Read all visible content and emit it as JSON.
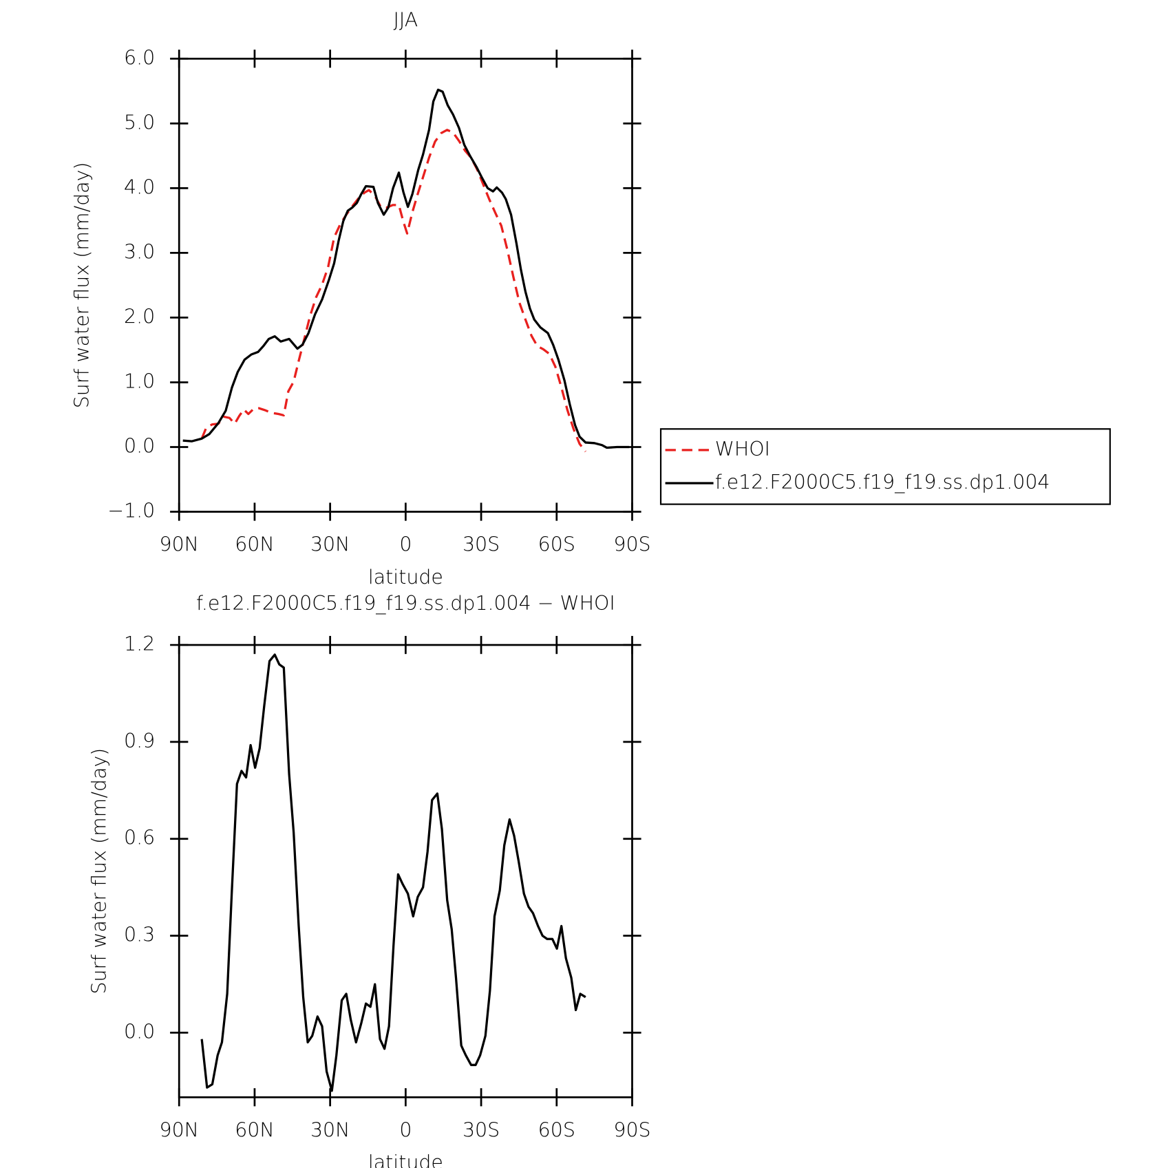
{
  "chart_data": [
    {
      "type": "line",
      "title": "JJA",
      "xlabel": "latitude",
      "ylabel": "Surf water flux (mm/day)",
      "xlim": [
        90,
        -90
      ],
      "xticks": [
        {
          "value": 90,
          "label": "90N"
        },
        {
          "value": 60,
          "label": "60N"
        },
        {
          "value": 30,
          "label": "30N"
        },
        0,
        {
          "value": -30,
          "label": "30S"
        },
        {
          "value": -60,
          "label": "60S"
        },
        {
          "value": -90,
          "label": "90S"
        }
      ],
      "ylim": [
        -1,
        6
      ],
      "yticks": [
        {
          "value": -1,
          "label": "−1.0"
        },
        {
          "value": 0,
          "label": "0.0"
        },
        {
          "value": 1,
          "label": "1.0"
        },
        {
          "value": 2,
          "label": "2.0"
        },
        {
          "value": 3,
          "label": "3.0"
        },
        {
          "value": 4,
          "label": "4.0"
        },
        {
          "value": 5,
          "label": "5.0"
        },
        {
          "value": 6,
          "label": "6.0"
        }
      ],
      "legend": "right",
      "series": [
        {
          "name": "WHOI",
          "color": "#e8201e",
          "dash": true,
          "x": [
            81,
            79.2,
            76.8,
            74.4,
            72.4,
            70,
            67.9,
            66.1,
            64.3,
            62.5,
            60.4,
            58.3,
            55.9,
            53.5,
            50.5,
            48.4,
            46.6,
            44.5,
            42.5,
            40.4,
            38,
            35.6,
            33.2,
            30.8,
            28.4,
            26,
            23.6,
            21.2,
            18.8,
            16.4,
            14.6,
            12.2,
            9.9,
            7.5,
            5.1,
            2.7,
            0.9,
            -0.6,
            -2.7,
            -4.8,
            -6.9,
            -9.3,
            -11.7,
            -14.1,
            -16.5,
            -18.8,
            -21.2,
            -23.6,
            -26,
            -28.4,
            -30.8,
            -33.2,
            -35.6,
            -38,
            -40.4,
            -42.8,
            -45.2,
            -47.6,
            -50,
            -52.3,
            -54.7,
            -57.1,
            -59.5,
            -61.9,
            -64.3,
            -66.7,
            -69.1,
            -71.5
          ],
          "values": [
            0.13,
            0.3,
            0.35,
            0.36,
            0.47,
            0.45,
            0.36,
            0.48,
            0.58,
            0.51,
            0.59,
            0.6,
            0.57,
            0.53,
            0.51,
            0.49,
            0.86,
            1.01,
            1.33,
            1.65,
            2.02,
            2.31,
            2.51,
            2.78,
            3.24,
            3.44,
            3.59,
            3.72,
            3.84,
            3.93,
            3.97,
            3.88,
            3.71,
            3.7,
            3.74,
            3.74,
            3.48,
            3.3,
            3.63,
            3.91,
            4.17,
            4.47,
            4.72,
            4.85,
            4.9,
            4.86,
            4.73,
            4.58,
            4.47,
            4.29,
            4.06,
            3.83,
            3.62,
            3.42,
            3.05,
            2.63,
            2.23,
            1.97,
            1.72,
            1.56,
            1.51,
            1.44,
            1.24,
            0.92,
            0.57,
            0.28,
            0.05,
            -0.07
          ]
        },
        {
          "name": "f.e12.F2000C5.f19_f19.ss.dp1.004",
          "color": "#000000",
          "dash": false,
          "x": [
            88.5,
            84.9,
            81,
            78,
            74.4,
            71.5,
            69,
            66.7,
            64,
            61.3,
            58.6,
            56.5,
            54.4,
            52,
            49.6,
            46.3,
            43,
            41,
            38.6,
            36,
            33.2,
            30.5,
            28.4,
            26.6,
            24.8,
            23,
            21.2,
            19.4,
            17.6,
            15.8,
            12.8,
            11,
            8.7,
            6.9,
            5,
            2.7,
            0.9,
            -0.9,
            -2.7,
            -5,
            -6.9,
            -9.3,
            -11,
            -12.9,
            -14.7,
            -16.7,
            -18.8,
            -21.2,
            -23.3,
            -25.7,
            -28.1,
            -30.2,
            -32.6,
            -34.7,
            -36.2,
            -38.3,
            -39.8,
            -41.9,
            -44,
            -45.8,
            -47.6,
            -49.4,
            -51.1,
            -53.5,
            -56.5,
            -58.6,
            -60.7,
            -63.1,
            -65.2,
            -67.3,
            -69.1,
            -71.5,
            -75,
            -78,
            -79.9,
            -84,
            -88.8
          ],
          "values": [
            0.1,
            0.09,
            0.13,
            0.2,
            0.37,
            0.56,
            0.92,
            1.16,
            1.35,
            1.43,
            1.47,
            1.56,
            1.67,
            1.71,
            1.63,
            1.67,
            1.52,
            1.58,
            1.76,
            2.05,
            2.28,
            2.58,
            2.84,
            3.19,
            3.49,
            3.65,
            3.7,
            3.77,
            3.91,
            4.03,
            4.02,
            3.77,
            3.59,
            3.7,
            4.0,
            4.24,
            3.94,
            3.71,
            3.91,
            4.28,
            4.52,
            4.9,
            5.34,
            5.52,
            5.49,
            5.28,
            5.14,
            4.93,
            4.67,
            4.49,
            4.33,
            4.17,
            4.0,
            3.95,
            4.01,
            3.93,
            3.83,
            3.59,
            3.15,
            2.74,
            2.4,
            2.14,
            1.97,
            1.85,
            1.76,
            1.58,
            1.35,
            1.03,
            0.66,
            0.34,
            0.16,
            0.07,
            0.06,
            0.03,
            -0.01,
            0.0,
            0.0
          ]
        }
      ]
    },
    {
      "type": "line",
      "title": "f.e12.F2000C5.f19_f19.ss.dp1.004 − WHOI",
      "xlabel": "latitude",
      "ylabel": "Surf water flux (mm/day)",
      "xlim": [
        90,
        -90
      ],
      "xticks": [
        {
          "value": 90,
          "label": "90N"
        },
        {
          "value": 60,
          "label": "60N"
        },
        {
          "value": 30,
          "label": "30N"
        },
        0,
        {
          "value": -30,
          "label": "30S"
        },
        {
          "value": -60,
          "label": "60S"
        },
        {
          "value": -90,
          "label": "90S"
        }
      ],
      "ylim": [
        -0.2,
        1.2
      ],
      "yticks": [
        {
          "value": 0,
          "label": "0.0"
        },
        0.3,
        0.6,
        0.9,
        1.2
      ],
      "color": "#000000",
      "x": [
        81,
        78.9,
        76.8,
        74.7,
        73,
        70.9,
        69.1,
        67,
        65.2,
        63.4,
        61.6,
        59.8,
        58,
        56.2,
        54.1,
        52,
        50.2,
        48.4,
        46.3,
        44.5,
        42.5,
        40.7,
        38.9,
        37.1,
        35,
        33.2,
        31.4,
        29.3,
        27.5,
        25.4,
        23.6,
        21.8,
        19.7,
        17.6,
        15.8,
        14,
        12.2,
        10.2,
        8.4,
        6.6,
        4.8,
        3,
        1.2,
        -0.9,
        -3,
        -4.8,
        -6.9,
        -8.7,
        -10.5,
        -12.6,
        -14.4,
        -16.5,
        -18.3,
        -20,
        -22.1,
        -23.9,
        -26,
        -27.8,
        -29.6,
        -31.7,
        -33.5,
        -35.3,
        -37.4,
        -39.2,
        -41.3,
        -43.1,
        -44.9,
        -47,
        -48.8,
        -50.6,
        -52.6,
        -54.4,
        -56.2,
        -58.3,
        -60.1,
        -61.9,
        -63.7,
        -65.8,
        -67.6,
        -69.4,
        -71.5
      ],
      "values": [
        -0.02,
        -0.17,
        -0.16,
        -0.07,
        -0.03,
        0.12,
        0.43,
        0.77,
        0.81,
        0.79,
        0.89,
        0.82,
        0.88,
        1.01,
        1.15,
        1.17,
        1.14,
        1.13,
        0.8,
        0.62,
        0.33,
        0.11,
        -0.03,
        -0.01,
        0.05,
        0.02,
        -0.12,
        -0.18,
        -0.07,
        0.1,
        0.12,
        0.04,
        -0.03,
        0.03,
        0.09,
        0.08,
        0.15,
        -0.02,
        -0.05,
        0.02,
        0.27,
        0.49,
        0.46,
        0.43,
        0.36,
        0.42,
        0.45,
        0.56,
        0.72,
        0.74,
        0.63,
        0.41,
        0.32,
        0.17,
        -0.04,
        -0.07,
        -0.1,
        -0.1,
        -0.07,
        -0.01,
        0.13,
        0.36,
        0.44,
        0.58,
        0.66,
        0.61,
        0.53,
        0.43,
        0.39,
        0.37,
        0.33,
        0.3,
        0.29,
        0.29,
        0.26,
        0.33,
        0.23,
        0.17,
        0.07,
        0.12,
        0.11
      ]
    }
  ]
}
